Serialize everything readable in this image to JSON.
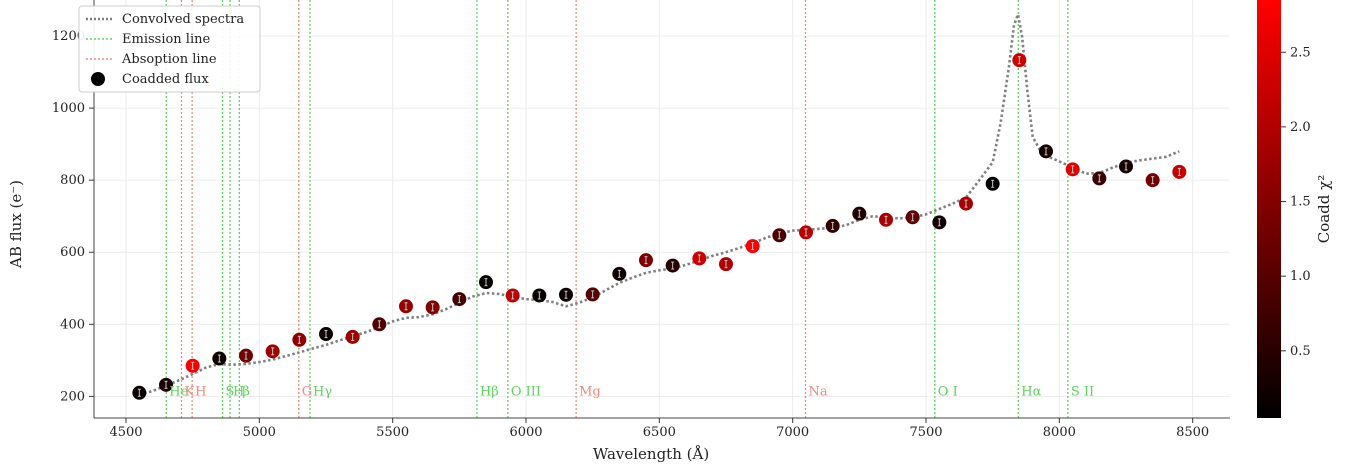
{
  "chart_data": {
    "type": "scatter",
    "xlabel": "Wavelength (Å)",
    "ylabel": "AB flux (e⁻)",
    "colorbar_label": "Coadd χ²",
    "xlim": [
      4380,
      8640
    ],
    "ylim": [
      140,
      1300
    ],
    "xticks": [
      4500,
      5000,
      5500,
      6000,
      6500,
      7000,
      7500,
      8000,
      8500
    ],
    "yticks": [
      200,
      400,
      600,
      800,
      1000,
      1200
    ],
    "grid": true,
    "legend_position": "top-left",
    "legend": [
      {
        "label": "Convolved spectra",
        "style": "dotted-gray"
      },
      {
        "label": "Emission line",
        "style": "dotted-green"
      },
      {
        "label": "Absoption line",
        "style": "dotted-salmon"
      },
      {
        "label": "Coadded flux",
        "style": "black-dot"
      }
    ],
    "colorbar": {
      "range": [
        0.05,
        2.85
      ],
      "ticks": [
        "0.5",
        "1.0",
        "1.5",
        "2.0",
        "2.5"
      ],
      "tick_values": [
        0.5,
        1.0,
        1.5,
        2.0,
        2.5
      ],
      "colors": [
        "#000000",
        "#ff0000"
      ]
    },
    "colors": {
      "convolved": "#808080",
      "emission": "#5fd35f",
      "absorption": "#f08a7e",
      "grid": "#ececec"
    },
    "convolved_spectrum": {
      "x": [
        4550,
        4600,
        4650,
        4700,
        4750,
        4800,
        4850,
        4900,
        4950,
        5000,
        5050,
        5100,
        5150,
        5200,
        5250,
        5300,
        5350,
        5400,
        5450,
        5500,
        5550,
        5600,
        5650,
        5700,
        5750,
        5800,
        5850,
        5900,
        5950,
        6000,
        6050,
        6100,
        6150,
        6200,
        6250,
        6300,
        6350,
        6400,
        6450,
        6500,
        6550,
        6600,
        6650,
        6700,
        6750,
        6800,
        6850,
        6900,
        6950,
        7000,
        7050,
        7100,
        7150,
        7200,
        7250,
        7300,
        7350,
        7400,
        7450,
        7500,
        7550,
        7600,
        7650,
        7700,
        7750,
        7780,
        7810,
        7830,
        7845,
        7860,
        7880,
        7900,
        7930,
        7960,
        8000,
        8050,
        8100,
        8150,
        8200,
        8250,
        8300,
        8350,
        8400,
        8450
      ],
      "y": [
        205,
        215,
        230,
        245,
        262,
        280,
        290,
        288,
        290,
        295,
        302,
        312,
        322,
        333,
        343,
        355,
        367,
        378,
        392,
        408,
        418,
        420,
        428,
        442,
        460,
        477,
        487,
        484,
        476,
        470,
        467,
        462,
        450,
        460,
        475,
        495,
        515,
        530,
        543,
        550,
        555,
        565,
        577,
        590,
        600,
        612,
        625,
        640,
        652,
        660,
        662,
        665,
        668,
        675,
        690,
        700,
        697,
        694,
        697,
        705,
        720,
        735,
        752,
        800,
        850,
        960,
        1110,
        1230,
        1260,
        1200,
        1050,
        920,
        880,
        865,
        852,
        835,
        818,
        820,
        835,
        848,
        855,
        860,
        865,
        880
      ]
    },
    "coadded_flux": [
      {
        "x": 4550,
        "y": 210,
        "chi2": 0.15
      },
      {
        "x": 4650,
        "y": 232,
        "chi2": 0.35
      },
      {
        "x": 4750,
        "y": 285,
        "chi2": 2.75
      },
      {
        "x": 4850,
        "y": 305,
        "chi2": 0.2
      },
      {
        "x": 4950,
        "y": 313,
        "chi2": 1.3
      },
      {
        "x": 5050,
        "y": 325,
        "chi2": 1.8
      },
      {
        "x": 5150,
        "y": 357,
        "chi2": 1.6
      },
      {
        "x": 5250,
        "y": 373,
        "chi2": 0.15
      },
      {
        "x": 5350,
        "y": 365,
        "chi2": 1.8
      },
      {
        "x": 5450,
        "y": 400,
        "chi2": 0.9
      },
      {
        "x": 5550,
        "y": 450,
        "chi2": 1.7
      },
      {
        "x": 5650,
        "y": 447,
        "chi2": 1.5
      },
      {
        "x": 5750,
        "y": 470,
        "chi2": 0.8
      },
      {
        "x": 5850,
        "y": 517,
        "chi2": 0.1
      },
      {
        "x": 5950,
        "y": 480,
        "chi2": 2.1
      },
      {
        "x": 6050,
        "y": 480,
        "chi2": 0.15
      },
      {
        "x": 6150,
        "y": 482,
        "chi2": 0.2
      },
      {
        "x": 6250,
        "y": 483,
        "chi2": 1.0
      },
      {
        "x": 6350,
        "y": 540,
        "chi2": 0.2
      },
      {
        "x": 6450,
        "y": 578,
        "chi2": 1.4
      },
      {
        "x": 6550,
        "y": 563,
        "chi2": 0.5
      },
      {
        "x": 6650,
        "y": 583,
        "chi2": 2.3
      },
      {
        "x": 6750,
        "y": 567,
        "chi2": 2.0
      },
      {
        "x": 6850,
        "y": 617,
        "chi2": 2.8
      },
      {
        "x": 6950,
        "y": 647,
        "chi2": 0.9
      },
      {
        "x": 7050,
        "y": 655,
        "chi2": 2.1
      },
      {
        "x": 7150,
        "y": 673,
        "chi2": 0.6
      },
      {
        "x": 7250,
        "y": 707,
        "chi2": 0.4
      },
      {
        "x": 7350,
        "y": 690,
        "chi2": 1.9
      },
      {
        "x": 7450,
        "y": 697,
        "chi2": 1.1
      },
      {
        "x": 7550,
        "y": 683,
        "chi2": 0.25
      },
      {
        "x": 7650,
        "y": 735,
        "chi2": 1.9
      },
      {
        "x": 7750,
        "y": 790,
        "chi2": 0.1
      },
      {
        "x": 7850,
        "y": 1133,
        "chi2": 2.3
      },
      {
        "x": 7950,
        "y": 880,
        "chi2": 0.3
      },
      {
        "x": 8050,
        "y": 830,
        "chi2": 2.5
      },
      {
        "x": 8150,
        "y": 805,
        "chi2": 0.7
      },
      {
        "x": 8250,
        "y": 838,
        "chi2": 0.3
      },
      {
        "x": 8350,
        "y": 800,
        "chi2": 1.3
      },
      {
        "x": 8450,
        "y": 823,
        "chi2": 2.2
      }
    ],
    "emission_lines": [
      {
        "x": 4651,
        "label": "He"
      },
      {
        "x": 4862,
        "label": "S"
      },
      {
        "x": 4890,
        "label": "H"
      },
      {
        "x": 4925,
        "label": "β"
      },
      {
        "x": 5190,
        "label": "Hγ"
      },
      {
        "x": 5816,
        "label": "Hβ"
      },
      {
        "x": 5932,
        "label": "O III"
      },
      {
        "x": 7533,
        "label": "O I"
      },
      {
        "x": 7846,
        "label": "Hα"
      },
      {
        "x": 8032,
        "label": "S II"
      }
    ],
    "absorption_lines": [
      {
        "x": 4708,
        "label": "K"
      },
      {
        "x": 4748,
        "label": "H"
      },
      {
        "x": 5148,
        "label": "G"
      },
      {
        "x": 6188,
        "label": "Mg"
      },
      {
        "x": 7048,
        "label": "Na"
      }
    ]
  }
}
